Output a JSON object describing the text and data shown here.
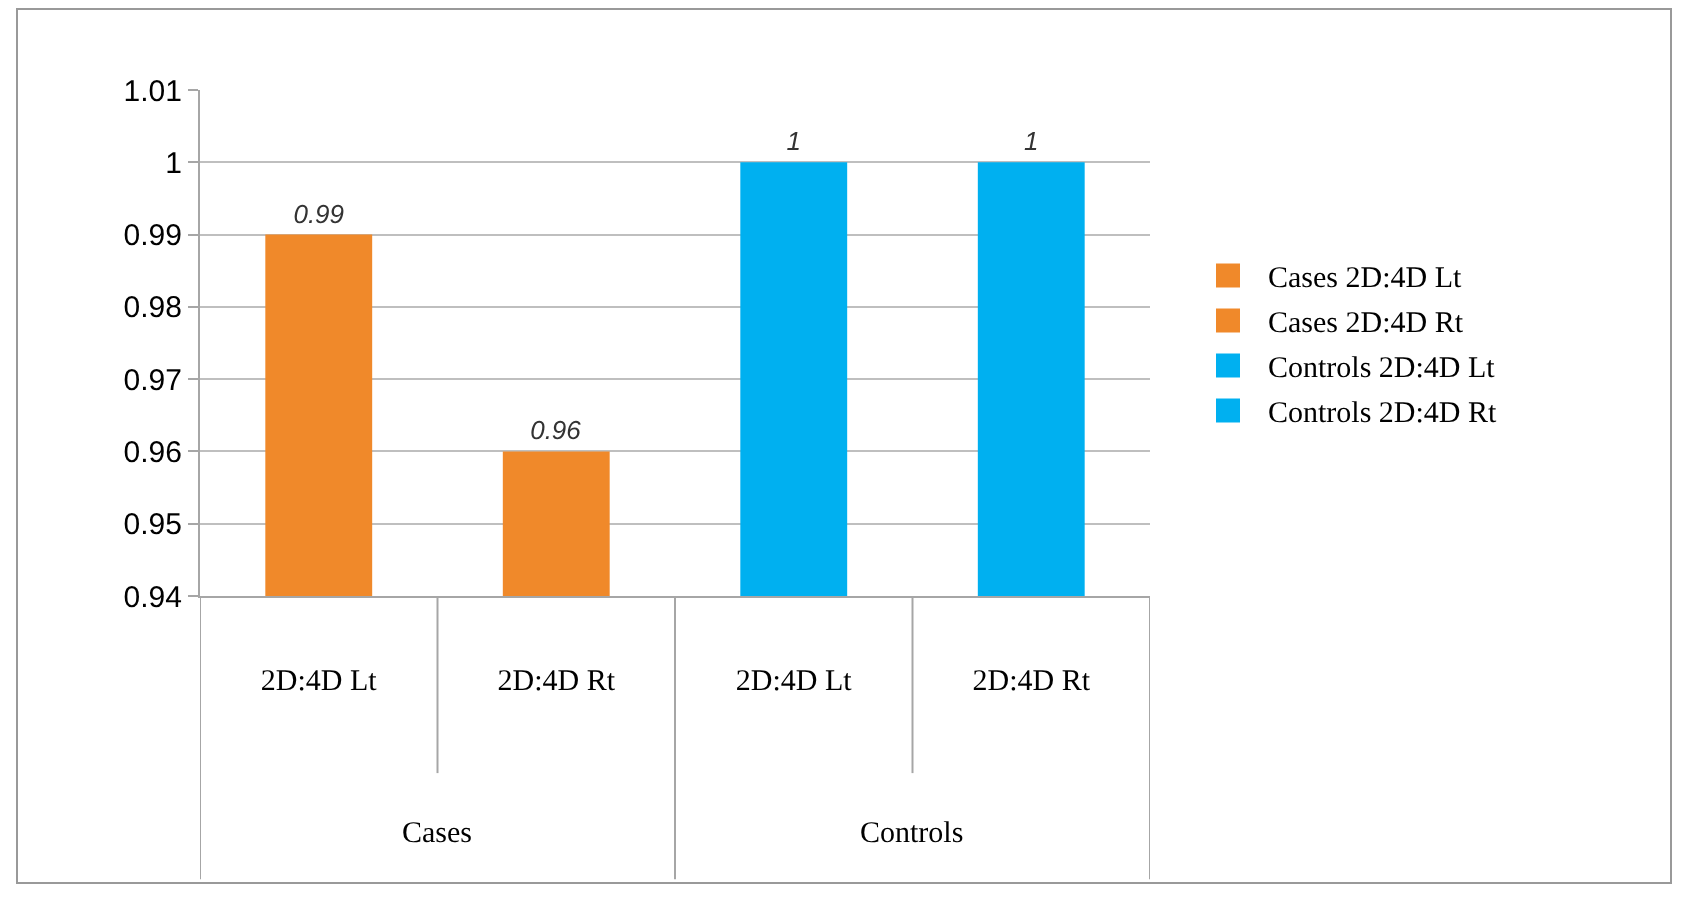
{
  "chart_data": {
    "type": "bar",
    "categories": [
      "2D:4D Lt",
      "2D:4D Rt",
      "2D:4D Lt",
      "2D:4D Rt"
    ],
    "series": [
      {
        "name": "Cases 2D:4D Lt",
        "color": "#f0892a",
        "values": [
          0.99,
          null,
          null,
          null
        ]
      },
      {
        "name": "Cases 2D:4D Rt",
        "color": "#f0892a",
        "values": [
          null,
          0.96,
          null,
          null
        ]
      },
      {
        "name": "Controls 2D:4D Lt",
        "color": "#00b0f0",
        "values": [
          null,
          null,
          1,
          null
        ]
      },
      {
        "name": "Controls 2D:4D Rt",
        "color": "#00b0f0",
        "values": [
          null,
          null,
          null,
          1
        ]
      }
    ],
    "annotations": [
      "Cases",
      "Controls"
    ],
    "ylim": [
      0.94,
      1.01
    ],
    "yticks": [
      0.94,
      0.95,
      0.96,
      0.97,
      0.98,
      0.99,
      1,
      1.01
    ],
    "grid": "y",
    "legend": "right",
    "data_labels": true
  }
}
